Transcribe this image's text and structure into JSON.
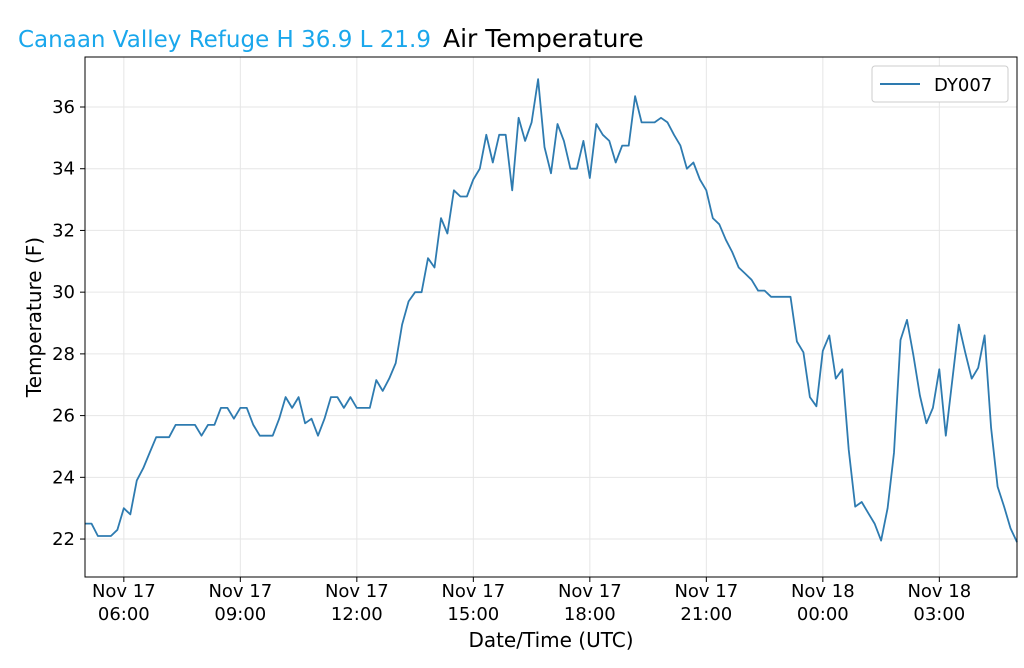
{
  "header": {
    "station": "Canaan Valley Refuge  H 36.9 L 21.9",
    "station_color": "#1aa7ec"
  },
  "chart_data": {
    "type": "line",
    "title": "Air Temperature",
    "xlabel": "Date/Time (UTC)",
    "ylabel": "Temperature (F)",
    "start": "Nov 17 05:00",
    "interval_minutes": 10,
    "xlim_hours": [
      0,
      24
    ],
    "ylim": [
      20.77,
      37.62
    ],
    "grid": true,
    "legend_position": "top-right",
    "yticks": [
      22,
      24,
      26,
      28,
      30,
      32,
      34,
      36
    ],
    "xticks": [
      {
        "hour": 1,
        "date": "Nov 17",
        "time": "06:00"
      },
      {
        "hour": 4,
        "date": "Nov 17",
        "time": "09:00"
      },
      {
        "hour": 7,
        "date": "Nov 17",
        "time": "12:00"
      },
      {
        "hour": 10,
        "date": "Nov 17",
        "time": "15:00"
      },
      {
        "hour": 13,
        "date": "Nov 17",
        "time": "18:00"
      },
      {
        "hour": 16,
        "date": "Nov 17",
        "time": "21:00"
      },
      {
        "hour": 19,
        "date": "Nov 18",
        "time": "00:00"
      },
      {
        "hour": 22,
        "date": "Nov 18",
        "time": "03:00"
      }
    ],
    "series": [
      {
        "name": "DY007",
        "color": "#2e7bb0",
        "values": [
          22.5,
          22.5,
          22.1,
          22.1,
          22.1,
          22.3,
          23.0,
          22.8,
          23.9,
          24.3,
          24.8,
          25.3,
          25.3,
          25.3,
          25.7,
          25.7,
          25.7,
          25.7,
          25.35,
          25.7,
          25.7,
          26.25,
          26.25,
          25.9,
          26.25,
          26.25,
          25.7,
          25.35,
          25.35,
          25.35,
          25.9,
          26.6,
          26.25,
          26.6,
          25.75,
          25.9,
          25.35,
          25.9,
          26.6,
          26.6,
          26.25,
          26.6,
          26.25,
          26.25,
          26.25,
          27.15,
          26.8,
          27.2,
          27.7,
          28.95,
          29.7,
          30.0,
          30.0,
          31.1,
          30.8,
          32.4,
          31.9,
          33.3,
          33.1,
          33.1,
          33.65,
          34.0,
          35.1,
          34.2,
          35.1,
          35.1,
          33.3,
          35.65,
          34.9,
          35.5,
          36.9,
          34.7,
          33.85,
          35.45,
          34.9,
          34.0,
          34.0,
          34.9,
          33.7,
          35.45,
          35.1,
          34.9,
          34.2,
          34.75,
          34.75,
          36.35,
          35.5,
          35.5,
          35.5,
          35.65,
          35.5,
          35.1,
          34.75,
          34.0,
          34.2,
          33.65,
          33.3,
          32.4,
          32.2,
          31.7,
          31.3,
          30.8,
          30.6,
          30.4,
          30.05,
          30.05,
          29.85,
          29.85,
          29.85,
          29.85,
          28.4,
          28.05,
          26.6,
          26.3,
          28.1,
          28.6,
          27.2,
          27.5,
          24.9,
          23.05,
          23.2,
          22.85,
          22.5,
          21.95,
          23.0,
          24.8,
          28.45,
          29.1,
          27.95,
          26.65,
          25.75,
          26.25,
          27.5,
          25.35,
          27.15,
          28.95,
          28.05,
          27.2,
          27.55,
          28.6,
          25.6,
          23.7,
          23.05,
          22.35,
          21.9
        ]
      }
    ]
  }
}
